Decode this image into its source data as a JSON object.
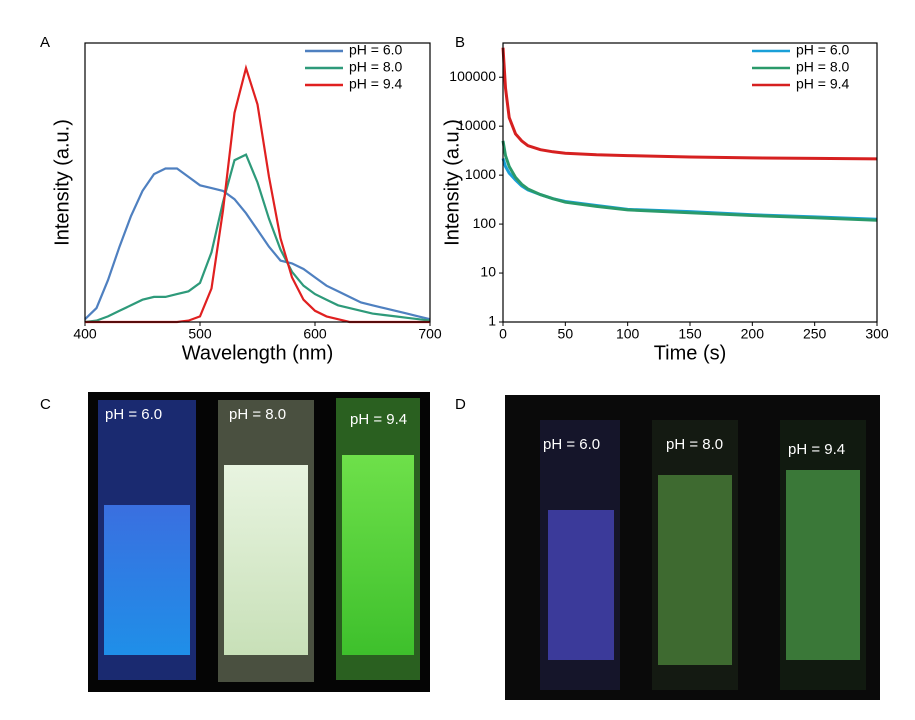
{
  "chart_data": [
    {
      "type": "line",
      "panel": "A",
      "xlabel": "Wavelength (nm)",
      "ylabel": "Intensity (a.u.)",
      "x": [
        400,
        410,
        420,
        430,
        440,
        450,
        460,
        470,
        480,
        490,
        500,
        510,
        520,
        530,
        540,
        550,
        560,
        570,
        580,
        590,
        600,
        610,
        620,
        630,
        640,
        650,
        660,
        670,
        680,
        690,
        700
      ],
      "series": [
        {
          "name": "pH = 6.0",
          "color": "#4f80c0",
          "values": [
            0.01,
            0.05,
            0.15,
            0.27,
            0.38,
            0.47,
            0.53,
            0.55,
            0.55,
            0.52,
            0.49,
            0.48,
            0.47,
            0.44,
            0.39,
            0.33,
            0.27,
            0.22,
            0.21,
            0.19,
            0.16,
            0.13,
            0.11,
            0.09,
            0.07,
            0.06,
            0.05,
            0.04,
            0.03,
            0.02,
            0.01
          ]
        },
        {
          "name": "pH = 8.0",
          "color": "#2e9a7a",
          "values": [
            0,
            0.005,
            0.02,
            0.04,
            0.06,
            0.08,
            0.09,
            0.09,
            0.1,
            0.11,
            0.14,
            0.25,
            0.43,
            0.58,
            0.6,
            0.5,
            0.37,
            0.26,
            0.18,
            0.13,
            0.1,
            0.08,
            0.06,
            0.05,
            0.04,
            0.03,
            0.025,
            0.02,
            0.015,
            0.01,
            0.005
          ]
        },
        {
          "name": "pH = 9.4",
          "color": "#e02020",
          "values": [
            0,
            0,
            0,
            0,
            0,
            0,
            0,
            0,
            0,
            0.005,
            0.02,
            0.12,
            0.4,
            0.75,
            0.91,
            0.78,
            0.52,
            0.3,
            0.16,
            0.08,
            0.04,
            0.02,
            0.01,
            0,
            0,
            0,
            0,
            0,
            0,
            0,
            0
          ]
        }
      ],
      "xlim": [
        400,
        700
      ],
      "xticks": [
        400,
        500,
        600,
        700
      ],
      "ylim": [
        0,
        1
      ],
      "legend": "top-right"
    },
    {
      "type": "line",
      "panel": "B",
      "xlabel": "Time (s)",
      "ylabel": "Intensity (a.u.)",
      "log_y": true,
      "x": [
        0,
        2,
        5,
        10,
        15,
        20,
        30,
        40,
        50,
        75,
        100,
        150,
        200,
        250,
        300
      ],
      "series": [
        {
          "name": "pH = 6.0",
          "color": "#1aa0d8",
          "values": [
            2200,
            1500,
            1100,
            800,
            600,
            500,
            400,
            330,
            290,
            240,
            200,
            180,
            155,
            140,
            125
          ]
        },
        {
          "name": "pH = 8.0",
          "color": "#2a9a6a",
          "values": [
            5000,
            2500,
            1500,
            900,
            650,
            520,
            400,
            330,
            280,
            230,
            195,
            170,
            150,
            135,
            120
          ]
        },
        {
          "name": "pH = 9.4",
          "color": "#d62020",
          "values": [
            400000,
            60000,
            15000,
            7000,
            5000,
            4000,
            3300,
            3000,
            2800,
            2600,
            2500,
            2350,
            2250,
            2200,
            2150
          ]
        }
      ],
      "xlim": [
        0,
        300
      ],
      "xticks": [
        0,
        50,
        100,
        150,
        200,
        250,
        300
      ],
      "ylim": [
        1,
        500000
      ],
      "yticks": [
        1,
        10,
        100,
        1000,
        10000,
        100000
      ],
      "legend": "top-right"
    }
  ],
  "photos": [
    {
      "panel": "C",
      "labels": [
        "pH = 6.0",
        "pH = 8.0",
        "pH = 9.4"
      ]
    },
    {
      "panel": "D",
      "labels": [
        "pH = 6.0",
        "pH = 8.0",
        "pH = 9.4"
      ]
    }
  ]
}
